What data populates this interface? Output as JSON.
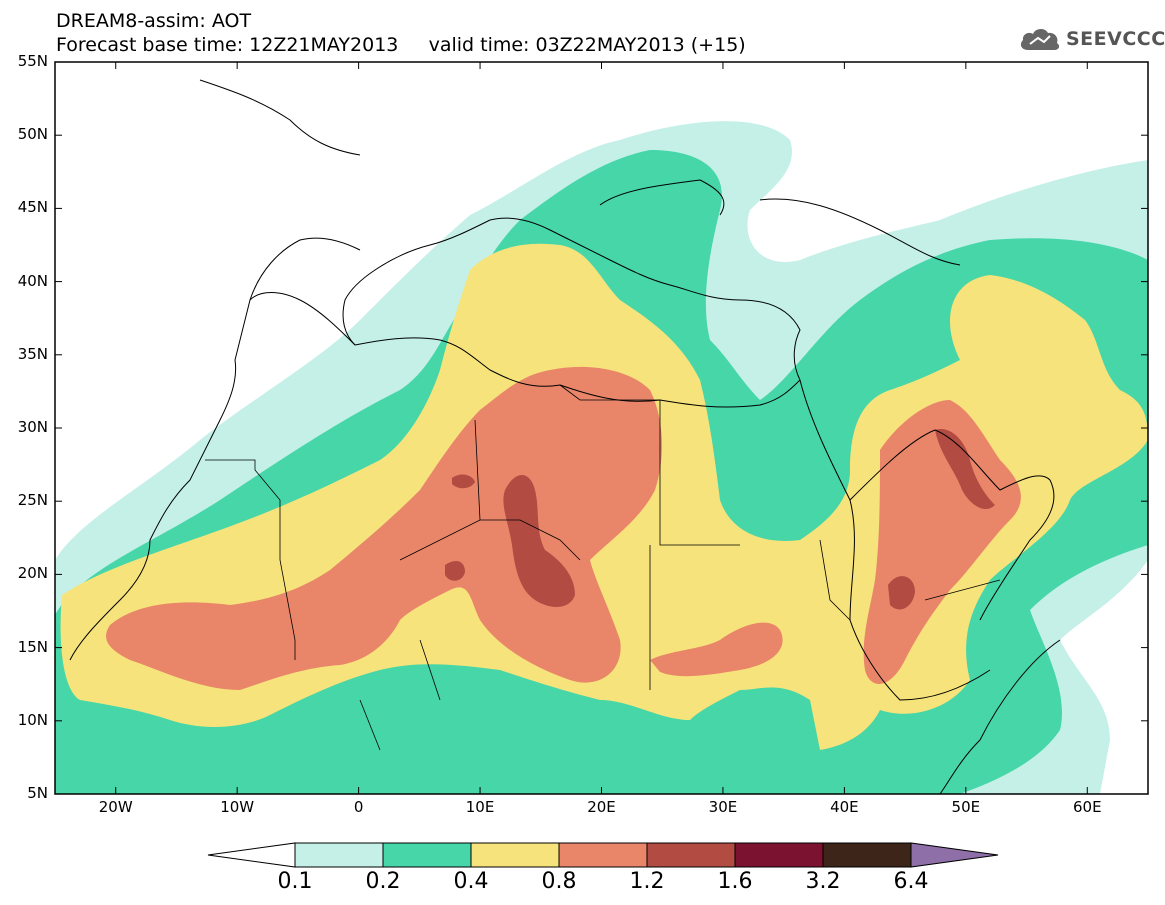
{
  "title": {
    "line1": "DREAM8-assim: AOT",
    "line2": "Forecast base time: 12Z21MAY2013     valid time: 03Z22MAY2013 (+15)"
  },
  "logo": {
    "text": "SEEVCCC",
    "icon": "cloud-icon"
  },
  "axes": {
    "lat_labels": [
      "55N",
      "50N",
      "45N",
      "40N",
      "35N",
      "30N",
      "25N",
      "20N",
      "15N",
      "10N",
      "5N"
    ],
    "lat_values": [
      55,
      50,
      45,
      40,
      35,
      30,
      25,
      20,
      15,
      10,
      5
    ],
    "lon_labels": [
      "20W",
      "10W",
      "0",
      "10E",
      "20E",
      "30E",
      "40E",
      "50E",
      "60E"
    ],
    "lon_values": [
      -20,
      -10,
      0,
      10,
      20,
      30,
      40,
      50,
      60
    ],
    "lon_range": [
      -25,
      65
    ],
    "lat_range": [
      5,
      55
    ]
  },
  "colorbar": {
    "labels": [
      "0.1",
      "0.2",
      "0.4",
      "0.8",
      "1.2",
      "1.6",
      "3.2",
      "6.4"
    ],
    "colors": [
      "#ffffff",
      "#c4f0e8",
      "#46d6a8",
      "#f7e37b",
      "#e9866a",
      "#b24c42",
      "#7b1230",
      "#3d2619",
      "#8e6fa8"
    ]
  },
  "legend_colors": {
    "lvl1": "#c4f0e8",
    "lvl2": "#46d6a8",
    "lvl3": "#f7e37b",
    "lvl4": "#e9866a",
    "lvl5": "#b24c42"
  }
}
